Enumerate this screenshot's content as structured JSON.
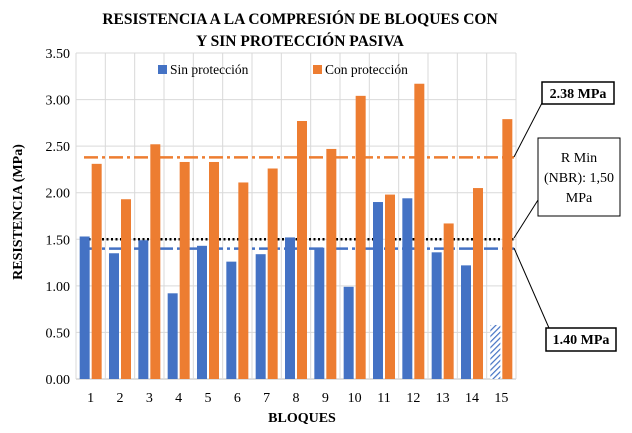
{
  "chart_data": {
    "type": "bar",
    "title": [
      "RESISTENCIA A LA COMPRESIÓN DE BLOQUES CON",
      "Y SIN PROTECCIÓN PASIVA"
    ],
    "xlabel": "BLOQUES",
    "ylabel": "RESISTENCIA (MPa)",
    "ylim": [
      0,
      3.5
    ],
    "yticks": [
      "0.00",
      "0.50",
      "1.00",
      "1.50",
      "2.00",
      "2.50",
      "3.00",
      "3.50"
    ],
    "grid": true,
    "legend_position": "top",
    "categories": [
      "1",
      "2",
      "3",
      "4",
      "5",
      "6",
      "7",
      "8",
      "9",
      "10",
      "11",
      "12",
      "13",
      "14",
      "15"
    ],
    "series": [
      {
        "name": "Sin protección",
        "color": "#4472C4",
        "values": [
          1.53,
          1.35,
          1.49,
          0.92,
          1.43,
          1.26,
          1.34,
          1.52,
          1.41,
          0.99,
          1.9,
          1.94,
          1.36,
          1.22,
          0.58
        ]
      },
      {
        "name": "Con protección",
        "color": "#ED7D31",
        "values": [
          2.31,
          1.93,
          2.52,
          2.33,
          2.33,
          2.11,
          2.26,
          2.77,
          2.47,
          3.04,
          1.98,
          3.17,
          1.67,
          2.05,
          2.79
        ]
      }
    ],
    "hatched_bar": {
      "series": "Sin protección",
      "category": "15"
    },
    "reference_lines": [
      {
        "value": 2.38,
        "color": "#ED7D31",
        "style": "dash-dot",
        "label": "2.38 MPa"
      },
      {
        "value": 1.5,
        "color": "#000000",
        "style": "dotted",
        "label": [
          "R Min",
          "(NBR):  1,50",
          "MPa"
        ]
      },
      {
        "value": 1.4,
        "color": "#4472C4",
        "style": "dash-dot",
        "label": "1.40 MPa"
      }
    ]
  }
}
